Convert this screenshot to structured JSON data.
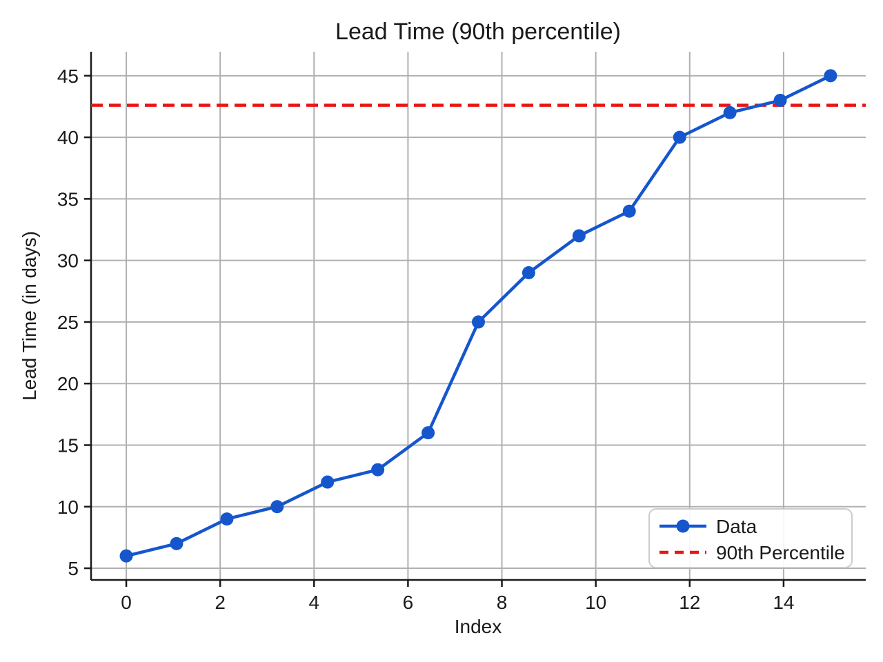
{
  "chart_data": {
    "type": "line",
    "title": "Lead Time (90th percentile)",
    "xlabel": "Index",
    "ylabel": "Lead Time (in days)",
    "x": [
      0,
      1.071,
      2.143,
      3.214,
      4.286,
      5.357,
      6.429,
      7.5,
      8.571,
      9.643,
      10.714,
      11.786,
      12.857,
      13.929,
      15
    ],
    "series": [
      {
        "name": "Data",
        "values": [
          6,
          7,
          9,
          10,
          12,
          13,
          16,
          25,
          29,
          32,
          34,
          40,
          42,
          43,
          45
        ],
        "color": "#1556cd",
        "marker": "circle",
        "line_style": "solid"
      }
    ],
    "reference_lines": [
      {
        "name": "90th Percentile",
        "value": 42.6,
        "color": "#ec1414",
        "line_style": "dashed",
        "orientation": "horizontal"
      }
    ],
    "xticks": [
      0,
      2,
      4,
      6,
      8,
      10,
      12,
      14
    ],
    "yticks": [
      5,
      10,
      15,
      20,
      25,
      30,
      35,
      40,
      45
    ],
    "xlim": [
      -0.75,
      15.75
    ],
    "ylim": [
      4.05,
      46.95
    ],
    "grid": true,
    "grid_color": "#b0b0b0",
    "spine_color": "#1a1a1a",
    "background_color": "#ffffff",
    "legend_position": "lower right"
  }
}
